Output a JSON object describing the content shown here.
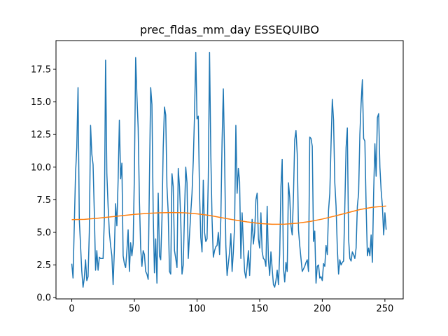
{
  "chart_data": {
    "type": "line",
    "title": "prec_fldas_mm_day ESSEQUIBO",
    "xlabel": "",
    "ylabel": "",
    "xlim": [
      -12.6,
      264.6
    ],
    "ylim": [
      -0.1,
      19.7
    ],
    "xticks": [
      0,
      50,
      100,
      150,
      200,
      250
    ],
    "xtick_labels": [
      "0",
      "50",
      "100",
      "150",
      "200",
      "250"
    ],
    "yticks": [
      0.0,
      2.5,
      5.0,
      7.5,
      10.0,
      12.5,
      15.0,
      17.5
    ],
    "ytick_labels": [
      "0.0",
      "2.5",
      "5.0",
      "7.5",
      "10.0",
      "12.5",
      "15.0",
      "17.5"
    ],
    "grid": false,
    "series": [
      {
        "color": "#1f77b4",
        "x": [
          0,
          1,
          2,
          3,
          4,
          5,
          6,
          7,
          8,
          9,
          10,
          11,
          12,
          13,
          14,
          15,
          16,
          17,
          18,
          19,
          20,
          21,
          22,
          23,
          24,
          25,
          26,
          27,
          28,
          29,
          30,
          31,
          32,
          33,
          34,
          35,
          36,
          37,
          38,
          39,
          40,
          41,
          42,
          43,
          44,
          45,
          46,
          47,
          48,
          49,
          50,
          51,
          52,
          53,
          54,
          55,
          56,
          57,
          58,
          59,
          60,
          61,
          62,
          63,
          64,
          65,
          66,
          67,
          68,
          69,
          70,
          71,
          72,
          73,
          74,
          75,
          76,
          77,
          78,
          79,
          80,
          81,
          82,
          83,
          84,
          85,
          86,
          87,
          88,
          89,
          90,
          91,
          92,
          93,
          94,
          95,
          96,
          97,
          98,
          99,
          100,
          101,
          102,
          103,
          104,
          105,
          106,
          107,
          108,
          109,
          110,
          111,
          112,
          113,
          114,
          115,
          116,
          117,
          118,
          119,
          120,
          121,
          122,
          123,
          124,
          125,
          126,
          127,
          128,
          129,
          130,
          131,
          132,
          133,
          134,
          135,
          136,
          137,
          138,
          139,
          140,
          141,
          142,
          143,
          144,
          145,
          146,
          147,
          148,
          149,
          150,
          151,
          152,
          153,
          154,
          155,
          156,
          157,
          158,
          159,
          160,
          161,
          162,
          163,
          164,
          165,
          166,
          167,
          168,
          169,
          170,
          171,
          172,
          173,
          174,
          175,
          176,
          177,
          178,
          179,
          180,
          181,
          182,
          183,
          184,
          185,
          186,
          187,
          188,
          189,
          190,
          191,
          192,
          193,
          194,
          195,
          196,
          197,
          198,
          199,
          200,
          201,
          202,
          203,
          204,
          205,
          206,
          207,
          208,
          209,
          210,
          211,
          212,
          213,
          214,
          215,
          216,
          217,
          218,
          219,
          220,
          221,
          222,
          223,
          224,
          225,
          226,
          227,
          228,
          229,
          230,
          231,
          232,
          233,
          234,
          235,
          236,
          237,
          238,
          239,
          240,
          241,
          242,
          243,
          244,
          245,
          246,
          247,
          248,
          249,
          250,
          251
        ],
        "values": [
          2.6,
          1.5,
          5.5,
          9.5,
          11.5,
          16.1,
          6.0,
          4.0,
          2.0,
          0.8,
          1.5,
          2.9,
          1.3,
          1.6,
          5.0,
          13.2,
          11.0,
          10.2,
          6.5,
          2.1,
          3.6,
          2.1,
          3.1,
          3.0,
          3.0,
          3.0,
          6.0,
          18.2,
          9.5,
          7.0,
          5.0,
          4.0,
          3.2,
          1.0,
          3.6,
          7.2,
          5.5,
          9.0,
          13.6,
          9.1,
          10.3,
          3.2,
          2.6,
          2.3,
          3.6,
          5.2,
          2.0,
          4.2,
          3.2,
          4.1,
          9.5,
          18.4,
          15.5,
          13.0,
          7.5,
          3.8,
          2.4,
          3.6,
          3.3,
          2.0,
          1.8,
          1.4,
          9.0,
          16.1,
          14.8,
          6.5,
          1.9,
          4.5,
          1.1,
          8.0,
          3.2,
          2.9,
          6.0,
          11.5,
          14.6,
          14.0,
          8.5,
          6.5,
          2.0,
          1.8,
          9.5,
          8.5,
          3.6,
          3.0,
          2.3,
          9.9,
          8.5,
          6.0,
          1.8,
          2.5,
          6.5,
          10.0,
          8.8,
          3.0,
          4.8,
          6.5,
          8.0,
          10.5,
          14.0,
          18.8,
          13.7,
          13.9,
          8.0,
          4.6,
          3.5,
          9.0,
          5.0,
          4.3,
          4.5,
          9.2,
          18.8,
          11.0,
          6.0,
          3.1,
          3.6,
          3.9,
          4.0,
          5.0,
          3.3,
          6.0,
          12.0,
          16.0,
          10.8,
          4.0,
          1.7,
          2.6,
          3.5,
          4.9,
          2.0,
          3.5,
          5.5,
          13.2,
          8.0,
          9.9,
          8.9,
          3.0,
          6.5,
          4.0,
          2.0,
          1.5,
          2.4,
          3.6,
          1.7,
          4.0,
          6.0,
          4.1,
          5.0,
          7.5,
          8.0,
          4.5,
          3.8,
          6.5,
          3.5,
          3.0,
          2.9,
          2.4,
          7.0,
          2.9,
          1.7,
          3.5,
          2.2,
          1.0,
          0.8,
          1.3,
          2.1,
          1.0,
          3.3,
          8.5,
          10.6,
          2.3,
          1.2,
          2.7,
          2.0,
          8.8,
          7.7,
          5.5,
          4.8,
          7.9,
          12.1,
          12.8,
          11.0,
          5.2,
          4.0,
          3.0,
          2.0,
          2.2,
          2.4,
          2.7,
          2.9,
          2.0,
          12.3,
          12.2,
          11.6,
          4.3,
          5.1,
          1.1,
          2.4,
          2.5,
          1.5,
          1.6,
          1.3,
          2.6,
          2.4,
          4.0,
          3.3,
          6.7,
          8.0,
          11.8,
          15.2,
          13.6,
          8.8,
          7.0,
          3.8,
          1.8,
          2.9,
          2.5,
          2.7,
          2.8,
          7.0,
          11.5,
          13.0,
          4.5,
          3.0,
          2.8,
          3.5,
          3.3,
          3.0,
          3.8,
          7.0,
          8.0,
          12.5,
          14.9,
          16.7,
          12.2,
          12.0,
          7.0,
          3.2,
          3.8,
          3.2,
          4.8,
          2.7,
          8.0,
          11.8,
          9.3,
          13.8,
          14.1,
          10.0,
          8.2,
          7.0,
          4.8,
          6.5,
          5.2
        ]
      },
      {
        "color": "#ff7f0e",
        "x": [
          0,
          10,
          20,
          30,
          40,
          50,
          60,
          70,
          80,
          90,
          100,
          110,
          120,
          130,
          140,
          150,
          160,
          170,
          180,
          190,
          200,
          210,
          220,
          230,
          240,
          251
        ],
        "values": [
          5.98,
          6.0,
          6.08,
          6.18,
          6.28,
          6.38,
          6.45,
          6.5,
          6.52,
          6.5,
          6.42,
          6.3,
          6.12,
          5.95,
          5.8,
          5.68,
          5.62,
          5.63,
          5.7,
          5.83,
          6.02,
          6.25,
          6.5,
          6.75,
          6.92,
          7.02
        ]
      }
    ]
  }
}
